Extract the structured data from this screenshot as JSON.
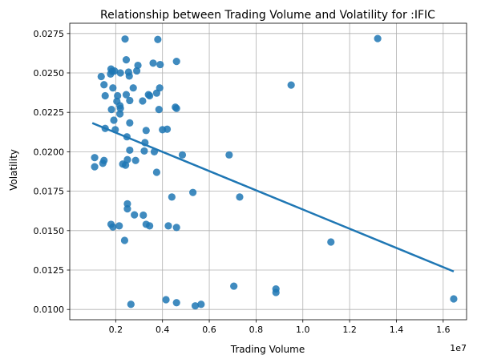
{
  "chart_data": {
    "type": "scatter",
    "title": "Relationship between Trading Volume and Volatility for :IFIC",
    "xlabel": "Trading Volume",
    "ylabel": "Volatility",
    "x_offset_label": "1e7",
    "xlim": [
      35000.0,
      17000000.0
    ],
    "ylim": [
      0.00935,
      0.02815
    ],
    "x_ticks": [
      {
        "value": 2000000,
        "label": "0.2"
      },
      {
        "value": 4000000,
        "label": "0.4"
      },
      {
        "value": 6000000,
        "label": "0.6"
      },
      {
        "value": 8000000,
        "label": "0.8"
      },
      {
        "value": 10000000,
        "label": "1.0"
      },
      {
        "value": 12000000,
        "label": "1.2"
      },
      {
        "value": 14000000,
        "label": "1.4"
      },
      {
        "value": 16000000,
        "label": "1.6"
      }
    ],
    "y_ticks": [
      {
        "value": 0.01,
        "label": "0.0100"
      },
      {
        "value": 0.0125,
        "label": "0.0125"
      },
      {
        "value": 0.015,
        "label": "0.0150"
      },
      {
        "value": 0.0175,
        "label": "0.0175"
      },
      {
        "value": 0.02,
        "label": "0.0200"
      },
      {
        "value": 0.0225,
        "label": "0.0225"
      },
      {
        "value": 0.025,
        "label": "0.0250"
      },
      {
        "value": 0.0275,
        "label": "0.0275"
      }
    ],
    "grid": true,
    "point_color": "#1f77b4",
    "line_color": "#1f77b4",
    "regression_line": [
      [
        1000000,
        0.02182
      ],
      [
        16450000,
        0.01241
      ]
    ],
    "points": [
      [
        1100000,
        0.01963
      ],
      [
        1100000,
        0.01905
      ],
      [
        1450000,
        0.01927
      ],
      [
        1500000,
        0.01945
      ],
      [
        1380000,
        0.02477
      ],
      [
        1500000,
        0.02425
      ],
      [
        1550000,
        0.02355
      ],
      [
        1550000,
        0.02148
      ],
      [
        1800000,
        0.02525
      ],
      [
        1780000,
        0.02493
      ],
      [
        1850000,
        0.0251
      ],
      [
        1950000,
        0.02512
      ],
      [
        1880000,
        0.02405
      ],
      [
        1820000,
        0.02268
      ],
      [
        2050000,
        0.0232
      ],
      [
        2180000,
        0.02292
      ],
      [
        2200000,
        0.02275
      ],
      [
        2180000,
        0.0224
      ],
      [
        1920000,
        0.022
      ],
      [
        1980000,
        0.0214
      ],
      [
        2080000,
        0.02355
      ],
      [
        2200000,
        0.025
      ],
      [
        2400000,
        0.02715
      ],
      [
        2450000,
        0.02583
      ],
      [
        2450000,
        0.02362
      ],
      [
        2550000,
        0.02505
      ],
      [
        2580000,
        0.0248
      ],
      [
        2600000,
        0.02325
      ],
      [
        2600000,
        0.02183
      ],
      [
        2480000,
        0.02095
      ],
      [
        2600000,
        0.0201
      ],
      [
        2750000,
        0.02405
      ],
      [
        2900000,
        0.02513
      ],
      [
        2950000,
        0.02548
      ],
      [
        3150000,
        0.02322
      ],
      [
        3400000,
        0.02362
      ],
      [
        3450000,
        0.02355
      ],
      [
        3600000,
        0.02562
      ],
      [
        3800000,
        0.02712
      ],
      [
        3900000,
        0.02553
      ],
      [
        3750000,
        0.02372
      ],
      [
        3880000,
        0.02405
      ],
      [
        3850000,
        0.02268
      ],
      [
        3300000,
        0.02135
      ],
      [
        3250000,
        0.02058
      ],
      [
        3220000,
        0.02005
      ],
      [
        3650000,
        0.02
      ],
      [
        4000000,
        0.0214
      ],
      [
        4200000,
        0.02143
      ],
      [
        4550000,
        0.02283
      ],
      [
        4600000,
        0.02275
      ],
      [
        4600000,
        0.02573
      ],
      [
        2300000,
        0.01922
      ],
      [
        2420000,
        0.01915
      ],
      [
        2500000,
        0.0195
      ],
      [
        2850000,
        0.01945
      ],
      [
        3750000,
        0.0187
      ],
      [
        4850000,
        0.0198
      ],
      [
        5300000,
        0.01742
      ],
      [
        4400000,
        0.01713
      ],
      [
        6850000,
        0.0198
      ],
      [
        7300000,
        0.01713
      ],
      [
        9500000,
        0.02423
      ],
      [
        13200000,
        0.02718
      ],
      [
        2500000,
        0.0167
      ],
      [
        2500000,
        0.01638
      ],
      [
        2800000,
        0.016
      ],
      [
        3180000,
        0.01598
      ],
      [
        1800000,
        0.0154
      ],
      [
        1880000,
        0.01523
      ],
      [
        2150000,
        0.0153
      ],
      [
        3300000,
        0.0154
      ],
      [
        3450000,
        0.0153
      ],
      [
        4250000,
        0.0153
      ],
      [
        4600000,
        0.0152
      ],
      [
        2380000,
        0.01438
      ],
      [
        11200000,
        0.01428
      ],
      [
        7050000,
        0.01148
      ],
      [
        8850000,
        0.0113
      ],
      [
        8850000,
        0.01108
      ],
      [
        2650000,
        0.01033
      ],
      [
        4150000,
        0.01062
      ],
      [
        4600000,
        0.01043
      ],
      [
        5400000,
        0.01023
      ],
      [
        5650000,
        0.01033
      ],
      [
        16450000,
        0.01067
      ]
    ]
  }
}
